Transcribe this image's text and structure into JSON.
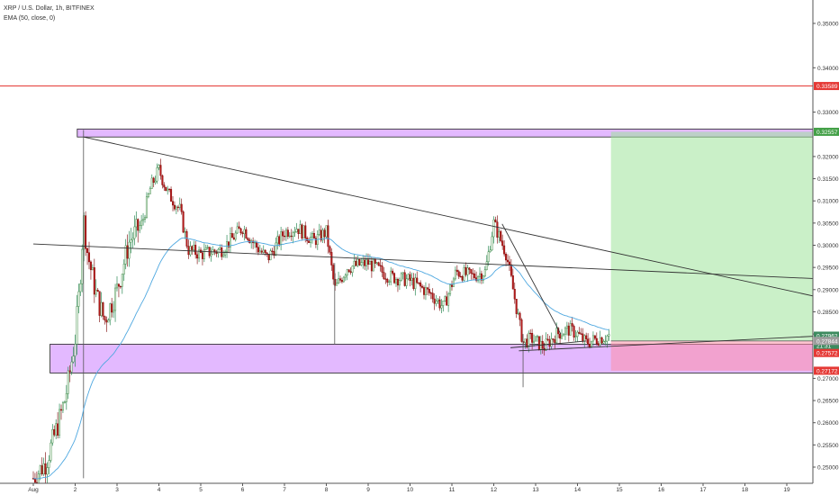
{
  "header": {
    "symbol_line": "XRP / U.S. Dollar, 1h, BITFINEX",
    "indicator_line": "EMA (50, close, 0)"
  },
  "chart_data": {
    "type": "candlestick",
    "symbol": "XRP / U.S. Dollar",
    "interval": "1h",
    "exchange": "BITFINEX",
    "indicator": "EMA (50, close, 0)",
    "y_ticks": [
      "0.35000",
      "0.34000",
      "0.33000",
      "0.32000",
      "0.31500",
      "0.31000",
      "0.30500",
      "0.30000",
      "0.29500",
      "0.29000",
      "0.28500",
      "0.28000",
      "0.27000",
      "0.26500",
      "0.26000",
      "0.25500",
      "0.25000"
    ],
    "ylim": [
      0.2475,
      0.3555
    ],
    "x_ticks": [
      "Aug",
      "2",
      "3",
      "4",
      "5",
      "6",
      "7",
      "8",
      "9",
      "10",
      "11",
      "12",
      "13",
      "14",
      "15",
      "16",
      "17",
      "18",
      "19"
    ],
    "price_labels": [
      {
        "text": "0.33589",
        "value": 0.33589,
        "color": "#e53935"
      },
      {
        "text": "0.32557",
        "value": 0.32557,
        "color": "#43a047"
      },
      {
        "text": "0.27962",
        "value": 0.27962,
        "color": "#3d8a5f"
      },
      {
        "text": "21:31",
        "value": 0.2774,
        "color": "#3d8a5f"
      },
      {
        "text": "0.27844",
        "value": 0.27844,
        "color": "#9e9e9e"
      },
      {
        "text": "0.27572",
        "value": 0.27572,
        "color": "#e53935"
      },
      {
        "text": "0.27172",
        "value": 0.27172,
        "color": "#e53935"
      }
    ],
    "horizontal_level": 0.33589,
    "zones": [
      {
        "name": "resistance-zone",
        "top": 0.3262,
        "bottom": 0.3244,
        "from_day": 1.05,
        "to_day": 19.1
      },
      {
        "name": "support-zone",
        "top": 0.2777,
        "bottom": 0.2712,
        "from_day": 0.4,
        "to_day": 19.1
      }
    ],
    "position": {
      "entry": 0.27844,
      "target": 0.32557,
      "stop": 0.27172,
      "from_day": 13.8,
      "to_day": 18.8
    },
    "trendlines": [
      {
        "from": [
          1.2,
          0.3244
        ],
        "to": [
          19.1,
          0.2876
        ]
      },
      {
        "from": [
          0.0,
          0.3003
        ],
        "to": [
          19.1,
          0.2923
        ]
      },
      {
        "from": [
          11.2,
          0.3048
        ],
        "to": [
          12.6,
          0.28
        ]
      },
      {
        "from": [
          11.6,
          0.2762
        ],
        "to": [
          19.1,
          0.2797
        ]
      },
      {
        "from": [
          11.4,
          0.2769
        ],
        "to": [
          13.2,
          0.2784
        ]
      }
    ],
    "candle_path": [
      [
        0.0,
        0.2475
      ],
      [
        0.3,
        0.251
      ],
      [
        0.6,
        0.26
      ],
      [
        0.75,
        0.265
      ],
      [
        0.85,
        0.27
      ],
      [
        1.0,
        0.279
      ],
      [
        1.1,
        0.29
      ],
      [
        1.2,
        0.306
      ],
      [
        1.3,
        0.298
      ],
      [
        1.5,
        0.289
      ],
      [
        1.7,
        0.283
      ],
      [
        2.0,
        0.29
      ],
      [
        2.3,
        0.301
      ],
      [
        2.6,
        0.305
      ],
      [
        2.8,
        0.313
      ],
      [
        3.0,
        0.317
      ],
      [
        3.2,
        0.312
      ],
      [
        3.5,
        0.308
      ],
      [
        3.7,
        0.299
      ],
      [
        4.0,
        0.298
      ],
      [
        4.5,
        0.299
      ],
      [
        5.0,
        0.304
      ],
      [
        5.3,
        0.3
      ],
      [
        5.6,
        0.297
      ],
      [
        6.0,
        0.303
      ],
      [
        6.3,
        0.304
      ],
      [
        6.7,
        0.301
      ],
      [
        7.0,
        0.303
      ],
      [
        7.2,
        0.29
      ],
      [
        7.5,
        0.295
      ],
      [
        8.0,
        0.296
      ],
      [
        8.5,
        0.293
      ],
      [
        9.0,
        0.292
      ],
      [
        9.5,
        0.289
      ],
      [
        9.8,
        0.286
      ],
      [
        10.1,
        0.294
      ],
      [
        10.5,
        0.293
      ],
      [
        10.8,
        0.294
      ],
      [
        11.0,
        0.305
      ],
      [
        11.3,
        0.298
      ],
      [
        11.5,
        0.288
      ],
      [
        11.7,
        0.278
      ],
      [
        11.9,
        0.279
      ],
      [
        12.2,
        0.277
      ],
      [
        12.5,
        0.28
      ],
      [
        12.8,
        0.281
      ],
      [
        13.0,
        0.28
      ],
      [
        13.2,
        0.278
      ],
      [
        13.5,
        0.279
      ],
      [
        13.75,
        0.2796
      ]
    ]
  }
}
